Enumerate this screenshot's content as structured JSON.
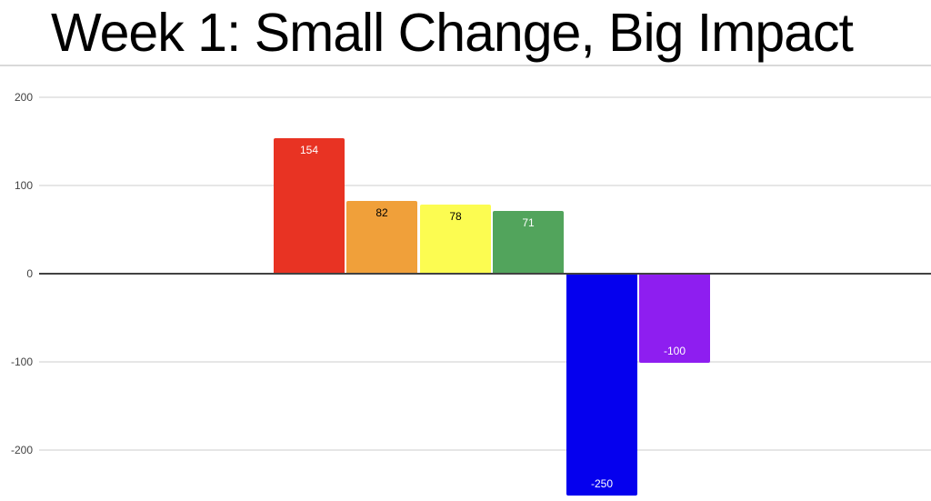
{
  "title": "Week 1: Small Change, Big Impact",
  "chart_data": {
    "type": "bar",
    "title": "Week 1: Small Change, Big Impact",
    "values": [
      154,
      82,
      78,
      71,
      -250,
      -100
    ],
    "data_labels": [
      "154",
      "82",
      "78",
      "71",
      "-250",
      "-100"
    ],
    "bar_colors": [
      "#E83323",
      "#F0A03A",
      "#FCFC51",
      "#52A45C",
      "#0500EE",
      "#8E1EF0"
    ],
    "data_label_colors": [
      "#FFFFFF",
      "#000000",
      "#000000",
      "#FFFFFF",
      "#FFFFFF",
      "#FFFFFF"
    ],
    "yticks": [
      200,
      100,
      0,
      -100,
      -200
    ],
    "ylim": [
      -260,
      235
    ],
    "grid": true,
    "legend_position": "none",
    "xlabel": "",
    "ylabel": ""
  },
  "colors": {
    "background": "#FFFFFF",
    "title_text": "#000000",
    "divider": "#D9D9D9",
    "gridline": "#E6E6E6",
    "zero_line": "#424242",
    "axis_label_text": "#424242"
  }
}
